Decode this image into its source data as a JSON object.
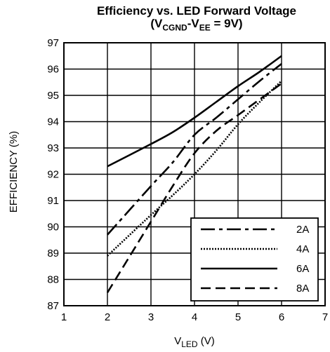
{
  "chart_data": {
    "type": "line",
    "title_line1": "Efficiency vs. LED Forward Voltage",
    "title_line2_parts": {
      "open": "(V",
      "sub1": "CGND",
      "dash": "-V",
      "sub2": "EE",
      "rest": " = 9V)"
    },
    "xlabel_parts": {
      "main": "V",
      "sub": "LED",
      "rest": " (V)"
    },
    "ylabel": "EFFICIENCY (%)",
    "xlim": [
      1,
      7
    ],
    "ylim": [
      87,
      97
    ],
    "xticks": [
      "1",
      "2",
      "3",
      "4",
      "5",
      "6",
      "7"
    ],
    "yticks": [
      "87",
      "88",
      "89",
      "90",
      "91",
      "92",
      "93",
      "94",
      "95",
      "96",
      "97"
    ],
    "grid": true,
    "legend_position": "bottom-right",
    "series": [
      {
        "name": "2A",
        "dash": "dash-dot",
        "x": [
          2,
          3,
          3.5,
          4,
          4.5,
          5,
          5.5,
          6
        ],
        "y": [
          89.7,
          91.55,
          92.45,
          93.5,
          94.15,
          94.85,
          95.55,
          96.2
        ]
      },
      {
        "name": "4A",
        "dash": "dotted",
        "x": [
          2,
          3,
          3.5,
          4,
          4.5,
          5,
          5.5,
          6
        ],
        "y": [
          88.9,
          90.45,
          91.2,
          92.0,
          92.9,
          93.9,
          94.75,
          95.55
        ]
      },
      {
        "name": "6A",
        "dash": "solid",
        "x": [
          2,
          3,
          3.5,
          4,
          4.5,
          5,
          5.5,
          6
        ],
        "y": [
          92.3,
          93.15,
          93.6,
          94.15,
          94.75,
          95.35,
          95.9,
          96.5
        ]
      },
      {
        "name": "8A",
        "dash": "dashed",
        "x": [
          2,
          3,
          3.5,
          4,
          4.5,
          5,
          5.5,
          6
        ],
        "y": [
          87.5,
          90.2,
          91.55,
          92.8,
          93.65,
          94.25,
          94.85,
          95.45
        ]
      }
    ]
  }
}
